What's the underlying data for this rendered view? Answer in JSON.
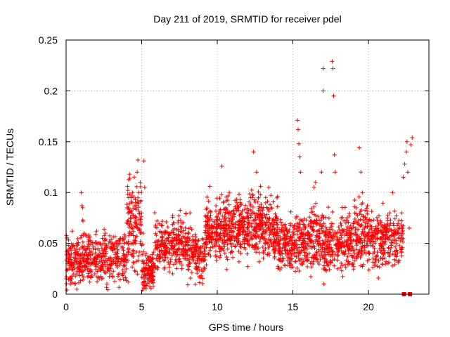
{
  "chart_data": {
    "type": "scatter",
    "title": "Day 211 of 2019, SRMTID for receiver pdel",
    "xlabel": "GPS time / hours",
    "ylabel": "SRMTID / TECUs",
    "xlim": [
      0,
      24
    ],
    "ylim": [
      0,
      0.25
    ],
    "x_ticks": [
      0,
      5,
      10,
      15,
      20
    ],
    "x_tick_labels": [
      "0",
      "5",
      "10",
      "15",
      "20"
    ],
    "y_ticks": [
      0,
      0.05,
      0.1,
      0.15,
      0.2,
      0.25
    ],
    "y_tick_labels": [
      "0",
      "0.05",
      "0.1",
      "0.15",
      "0.2",
      "0.25"
    ],
    "grid": true,
    "marker": "+",
    "series": [
      {
        "name": "SRMTID",
        "color": "#ff0000",
        "points": [
          [
            0.1,
            0.03
          ],
          [
            0.2,
            0.025
          ],
          [
            0.3,
            0.045
          ],
          [
            0.4,
            0.062
          ],
          [
            0.5,
            0.02
          ],
          [
            0.6,
            0.035
          ],
          [
            0.7,
            0.05
          ],
          [
            0.8,
            0.04
          ],
          [
            0.9,
            0.03
          ],
          [
            1.0,
            0.1
          ],
          [
            1.05,
            0.087
          ],
          [
            1.1,
            0.085
          ],
          [
            1.1,
            0.073
          ],
          [
            1.2,
            0.06
          ],
          [
            1.3,
            0.045
          ],
          [
            1.4,
            0.035
          ],
          [
            1.5,
            0.025
          ],
          [
            1.6,
            0.038
          ],
          [
            1.7,
            0.03
          ],
          [
            1.8,
            0.045
          ],
          [
            1.9,
            0.02
          ],
          [
            2.0,
            0.035
          ],
          [
            2.1,
            0.045
          ],
          [
            2.2,
            0.015
          ],
          [
            2.3,
            0.028
          ],
          [
            2.4,
            0.055
          ],
          [
            2.5,
            0.04
          ],
          [
            2.6,
            0.06
          ],
          [
            2.8,
            0.035
          ],
          [
            3.0,
            0.03
          ],
          [
            3.2,
            0.045
          ],
          [
            3.4,
            0.04
          ],
          [
            3.5,
            0.02
          ],
          [
            3.6,
            0.055
          ],
          [
            3.8,
            0.04
          ],
          [
            4.0,
            0.07
          ],
          [
            4.1,
            0.085
          ],
          [
            4.2,
            0.118
          ],
          [
            4.3,
            0.065
          ],
          [
            4.4,
            0.1
          ],
          [
            4.5,
            0.075
          ],
          [
            4.6,
            0.09
          ],
          [
            4.7,
            0.12
          ],
          [
            4.75,
            0.132
          ],
          [
            4.8,
            0.1
          ],
          [
            4.9,
            0.11
          ],
          [
            5.0,
            0.08
          ],
          [
            5.1,
            0.06
          ],
          [
            5.15,
            0.131
          ],
          [
            5.2,
            0.105
          ],
          [
            5.3,
            0.04
          ],
          [
            5.4,
            0.02
          ],
          [
            5.5,
            0.015
          ],
          [
            5.6,
            0.025
          ],
          [
            5.8,
            0.03
          ],
          [
            6.0,
            0.045
          ],
          [
            6.2,
            0.035
          ],
          [
            6.4,
            0.05
          ],
          [
            6.6,
            0.042
          ],
          [
            6.8,
            0.06
          ],
          [
            7.0,
            0.045
          ],
          [
            7.2,
            0.055
          ],
          [
            7.4,
            0.07
          ],
          [
            7.6,
            0.05
          ],
          [
            7.8,
            0.045
          ],
          [
            8.0,
            0.035
          ],
          [
            8.2,
            0.08
          ],
          [
            8.4,
            0.04
          ],
          [
            8.6,
            0.03
          ],
          [
            8.8,
            0.045
          ],
          [
            9.0,
            0.035
          ],
          [
            9.2,
            0.05
          ],
          [
            9.4,
            0.08
          ],
          [
            9.5,
            0.106
          ],
          [
            9.6,
            0.06
          ],
          [
            9.8,
            0.07
          ],
          [
            10.0,
            0.065
          ],
          [
            10.2,
            0.08
          ],
          [
            10.3,
            0.126
          ],
          [
            10.4,
            0.09
          ],
          [
            10.6,
            0.06
          ],
          [
            10.8,
            0.1
          ],
          [
            11.0,
            0.075
          ],
          [
            11.2,
            0.065
          ],
          [
            11.4,
            0.085
          ],
          [
            11.6,
            0.07
          ],
          [
            11.8,
            0.05
          ],
          [
            12.0,
            0.065
          ],
          [
            12.2,
            0.095
          ],
          [
            12.4,
            0.14
          ],
          [
            12.6,
            0.12
          ],
          [
            12.8,
            0.075
          ],
          [
            13.0,
            0.06
          ],
          [
            13.2,
            0.095
          ],
          [
            13.4,
            0.105
          ],
          [
            13.6,
            0.085
          ],
          [
            13.8,
            0.06
          ],
          [
            14.0,
            0.05
          ],
          [
            14.2,
            0.045
          ],
          [
            14.4,
            0.035
          ],
          [
            14.6,
            0.055
          ],
          [
            14.8,
            0.04
          ],
          [
            15.0,
            0.05
          ],
          [
            15.2,
            0.075
          ],
          [
            15.3,
            0.171
          ],
          [
            15.35,
            0.162
          ],
          [
            15.4,
            0.148
          ],
          [
            15.45,
            0.135
          ],
          [
            15.5,
            0.12
          ],
          [
            15.6,
            0.06
          ],
          [
            15.8,
            0.045
          ],
          [
            16.0,
            0.055
          ],
          [
            16.2,
            0.065
          ],
          [
            16.4,
            0.105
          ],
          [
            16.5,
            0.11
          ],
          [
            16.6,
            0.07
          ],
          [
            16.8,
            0.05
          ],
          [
            16.9,
            0.12
          ],
          [
            17.0,
            0.222
          ],
          [
            17.0,
            0.2
          ],
          [
            17.05,
            0.01
          ],
          [
            17.1,
            0.025
          ],
          [
            17.2,
            0.045
          ],
          [
            17.4,
            0.06
          ],
          [
            17.6,
            0.229
          ],
          [
            17.65,
            0.222
          ],
          [
            17.7,
            0.195
          ],
          [
            17.75,
            0.137
          ],
          [
            17.8,
            0.12
          ],
          [
            18.0,
            0.05
          ],
          [
            18.2,
            0.075
          ],
          [
            18.4,
            0.04
          ],
          [
            18.6,
            0.06
          ],
          [
            18.8,
            0.05
          ],
          [
            19.0,
            0.07
          ],
          [
            19.2,
            0.085
          ],
          [
            19.4,
            0.144
          ],
          [
            19.5,
            0.12
          ],
          [
            19.6,
            0.1
          ],
          [
            19.8,
            0.075
          ],
          [
            20.0,
            0.06
          ],
          [
            20.2,
            0.055
          ],
          [
            20.4,
            0.045
          ],
          [
            20.6,
            0.06
          ],
          [
            20.8,
            0.05
          ],
          [
            21.0,
            0.045
          ],
          [
            21.2,
            0.065
          ],
          [
            21.4,
            0.08
          ],
          [
            21.6,
            0.1
          ],
          [
            21.8,
            0.06
          ],
          [
            22.0,
            0.055
          ],
          [
            22.2,
            0.08
          ],
          [
            22.3,
            0.115
          ],
          [
            22.4,
            0.128
          ],
          [
            22.5,
            0.14
          ],
          [
            22.55,
            0.15
          ],
          [
            22.6,
            0.12
          ],
          [
            22.7,
            0.065
          ],
          [
            22.8,
            0.147
          ],
          [
            22.9,
            0.154
          ]
        ],
        "cloud": [
          [
            0.0,
            1.0,
            0.033,
            0.012,
            120
          ],
          [
            1.0,
            2.0,
            0.037,
            0.012,
            110
          ],
          [
            2.0,
            3.0,
            0.034,
            0.012,
            100
          ],
          [
            3.0,
            4.0,
            0.039,
            0.012,
            100
          ],
          [
            4.0,
            5.0,
            0.068,
            0.02,
            130
          ],
          [
            5.0,
            5.8,
            0.025,
            0.011,
            110
          ],
          [
            5.8,
            7.0,
            0.045,
            0.012,
            130
          ],
          [
            7.0,
            8.0,
            0.05,
            0.012,
            120
          ],
          [
            8.0,
            9.2,
            0.04,
            0.012,
            140
          ],
          [
            9.2,
            10.0,
            0.06,
            0.013,
            110
          ],
          [
            10.0,
            11.0,
            0.067,
            0.014,
            140
          ],
          [
            11.0,
            12.0,
            0.065,
            0.014,
            140
          ],
          [
            12.0,
            13.0,
            0.068,
            0.015,
            140
          ],
          [
            13.0,
            14.0,
            0.064,
            0.014,
            130
          ],
          [
            14.0,
            15.0,
            0.048,
            0.012,
            130
          ],
          [
            15.0,
            16.0,
            0.052,
            0.013,
            120
          ],
          [
            16.0,
            17.0,
            0.055,
            0.014,
            120
          ],
          [
            17.0,
            18.0,
            0.048,
            0.015,
            120
          ],
          [
            18.0,
            19.0,
            0.052,
            0.014,
            120
          ],
          [
            19.0,
            20.0,
            0.057,
            0.014,
            120
          ],
          [
            20.0,
            21.0,
            0.052,
            0.013,
            120
          ],
          [
            21.0,
            22.3,
            0.055,
            0.012,
            130
          ]
        ],
        "square_markers": [
          [
            22.35,
            0.0
          ],
          [
            22.75,
            0.0
          ]
        ]
      }
    ]
  }
}
